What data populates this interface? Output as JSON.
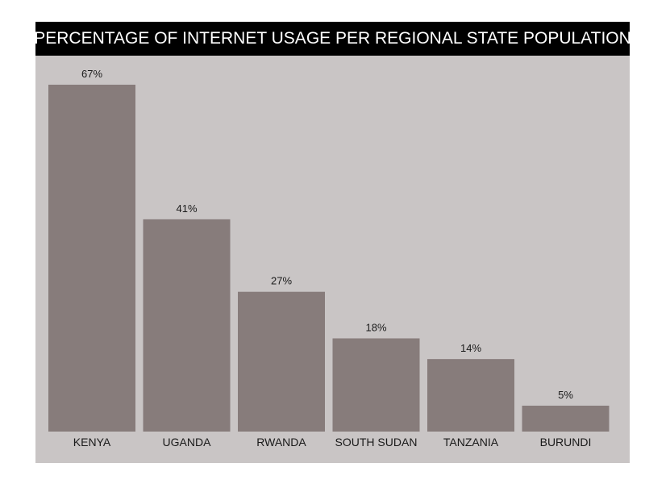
{
  "chart_data": {
    "type": "bar",
    "title": "PERCENTAGE OF INTERNET USAGE PER REGIONAL STATE POPULATION",
    "categories": [
      "KENYA",
      "UGANDA",
      "RWANDA",
      "SOUTH SUDAN",
      "TANZANIA",
      "BURUNDI"
    ],
    "values": [
      67,
      41,
      27,
      18,
      14,
      5
    ],
    "data_labels": [
      "67%",
      "41%",
      "27%",
      "18%",
      "14%",
      "5%"
    ],
    "xlabel": "",
    "ylabel": "",
    "ylim": [
      0,
      67
    ],
    "grid": false,
    "legend": "none",
    "colors": {
      "bar": "#877c7b",
      "plot_background": "#c9c5c5",
      "title_background": "#000000",
      "title_text": "#ffffff"
    }
  }
}
